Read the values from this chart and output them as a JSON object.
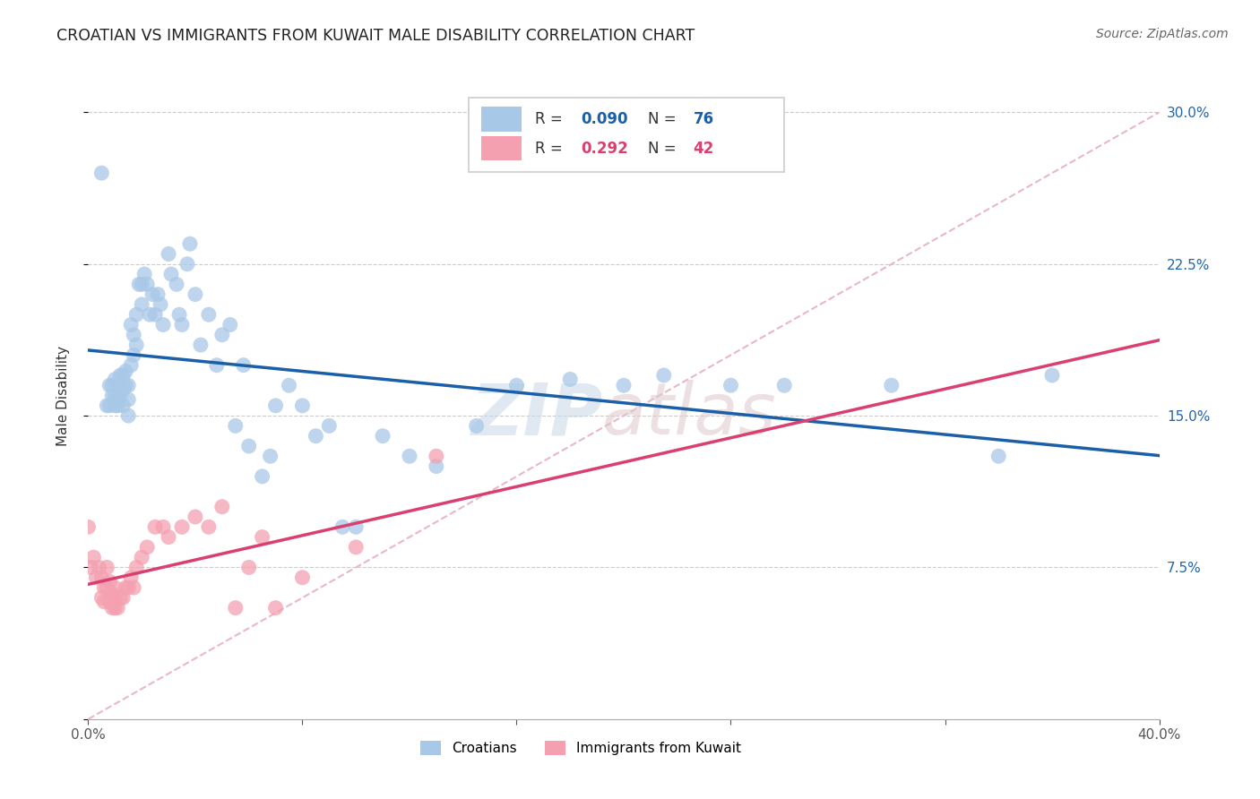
{
  "title": "CROATIAN VS IMMIGRANTS FROM KUWAIT MALE DISABILITY CORRELATION CHART",
  "source": "Source: ZipAtlas.com",
  "ylabel": "Male Disability",
  "xlim": [
    0.0,
    0.4
  ],
  "ylim": [
    0.0,
    0.32
  ],
  "xticks": [
    0.0,
    0.08,
    0.16,
    0.24,
    0.32,
    0.4
  ],
  "xticklabels": [
    "0.0%",
    "",
    "",
    "",
    "",
    "40.0%"
  ],
  "yticks": [
    0.0,
    0.075,
    0.15,
    0.225,
    0.3
  ],
  "yticklabels": [
    "",
    "7.5%",
    "15.0%",
    "22.5%",
    "30.0%"
  ],
  "croatian_color": "#a8c8e8",
  "kuwait_color": "#f4a0b0",
  "croatian_line_color": "#1a5fa8",
  "kuwait_line_color": "#d94070",
  "dashed_line_color": "#e8b8c8",
  "legend_r_croatian": "0.090",
  "legend_n_croatian": "76",
  "legend_r_kuwait": "0.292",
  "legend_n_kuwait": "42",
  "croatian_x": [
    0.005,
    0.007,
    0.008,
    0.008,
    0.009,
    0.009,
    0.01,
    0.01,
    0.01,
    0.011,
    0.011,
    0.012,
    0.012,
    0.013,
    0.013,
    0.013,
    0.014,
    0.014,
    0.015,
    0.015,
    0.015,
    0.016,
    0.016,
    0.017,
    0.017,
    0.018,
    0.018,
    0.019,
    0.02,
    0.02,
    0.021,
    0.022,
    0.023,
    0.024,
    0.025,
    0.026,
    0.027,
    0.028,
    0.03,
    0.031,
    0.033,
    0.034,
    0.035,
    0.037,
    0.04,
    0.042,
    0.045,
    0.048,
    0.05,
    0.053,
    0.055,
    0.058,
    0.06,
    0.065,
    0.068,
    0.07,
    0.075,
    0.08,
    0.085,
    0.09,
    0.095,
    0.1,
    0.11,
    0.12,
    0.13,
    0.145,
    0.16,
    0.18,
    0.2,
    0.215,
    0.24,
    0.26,
    0.3,
    0.34,
    0.36,
    0.038
  ],
  "croatian_y": [
    0.27,
    0.155,
    0.155,
    0.165,
    0.16,
    0.165,
    0.155,
    0.16,
    0.168,
    0.155,
    0.158,
    0.16,
    0.17,
    0.155,
    0.163,
    0.17,
    0.165,
    0.172,
    0.15,
    0.158,
    0.165,
    0.175,
    0.195,
    0.18,
    0.19,
    0.185,
    0.2,
    0.215,
    0.205,
    0.215,
    0.22,
    0.215,
    0.2,
    0.21,
    0.2,
    0.21,
    0.205,
    0.195,
    0.23,
    0.22,
    0.215,
    0.2,
    0.195,
    0.225,
    0.21,
    0.185,
    0.2,
    0.175,
    0.19,
    0.195,
    0.145,
    0.175,
    0.135,
    0.12,
    0.13,
    0.155,
    0.165,
    0.155,
    0.14,
    0.145,
    0.095,
    0.095,
    0.14,
    0.13,
    0.125,
    0.145,
    0.165,
    0.168,
    0.165,
    0.17,
    0.165,
    0.165,
    0.165,
    0.13,
    0.17,
    0.235
  ],
  "kuwait_x": [
    0.0,
    0.001,
    0.002,
    0.003,
    0.004,
    0.005,
    0.005,
    0.006,
    0.006,
    0.007,
    0.007,
    0.008,
    0.008,
    0.009,
    0.009,
    0.01,
    0.01,
    0.01,
    0.011,
    0.012,
    0.013,
    0.014,
    0.015,
    0.016,
    0.017,
    0.018,
    0.02,
    0.022,
    0.025,
    0.028,
    0.03,
    0.035,
    0.04,
    0.045,
    0.05,
    0.055,
    0.06,
    0.065,
    0.07,
    0.08,
    0.1,
    0.13
  ],
  "kuwait_y": [
    0.095,
    0.075,
    0.08,
    0.07,
    0.075,
    0.06,
    0.07,
    0.058,
    0.065,
    0.065,
    0.075,
    0.058,
    0.068,
    0.055,
    0.062,
    0.055,
    0.06,
    0.065,
    0.055,
    0.06,
    0.06,
    0.065,
    0.065,
    0.07,
    0.065,
    0.075,
    0.08,
    0.085,
    0.095,
    0.095,
    0.09,
    0.095,
    0.1,
    0.095,
    0.105,
    0.055,
    0.075,
    0.09,
    0.055,
    0.07,
    0.085,
    0.13
  ]
}
